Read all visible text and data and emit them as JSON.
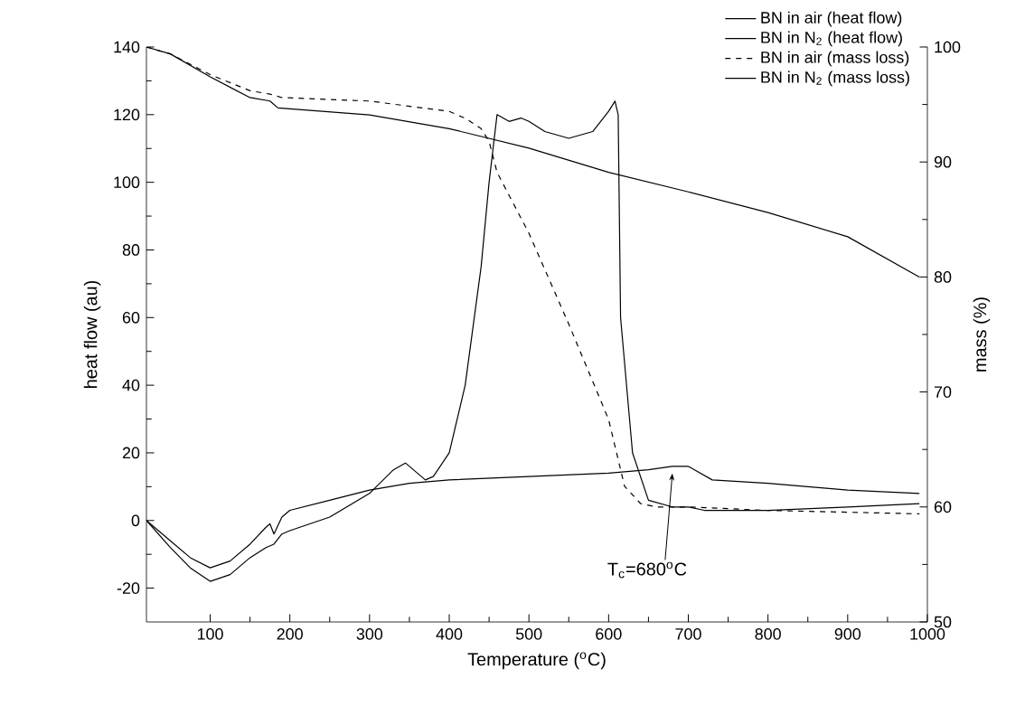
{
  "chart_data": {
    "type": "line",
    "xlabel": "Temperature ($^{o}$C)",
    "ylabel": "heat flow (au)",
    "y2label": "mass (%)",
    "xlim": [
      20,
      1000
    ],
    "xticks": [
      100,
      200,
      300,
      400,
      500,
      600,
      700,
      800,
      900,
      1000
    ],
    "ylim": [
      -30,
      140
    ],
    "yticks": [
      -20,
      0,
      20,
      40,
      60,
      80,
      100,
      120,
      140
    ],
    "y2lim": [
      50,
      100
    ],
    "y2ticks": [
      50,
      60,
      70,
      80,
      90,
      100
    ],
    "legend": "top right",
    "annotations": [
      {
        "text": "T$_{c}$=680$^{o}$C",
        "x": 680,
        "y": 15
      }
    ],
    "series": [
      {
        "name": "BN in air (heat flow)",
        "color": "#000000",
        "line_style": "solid",
        "x": [
          20,
          50,
          75,
          100,
          125,
          150,
          170,
          180,
          190,
          200,
          250,
          300,
          330,
          345,
          360,
          370,
          380,
          400,
          420,
          440,
          450,
          460,
          475,
          490,
          500,
          520,
          550,
          580,
          600,
          608,
          612,
          615,
          630,
          650,
          680,
          700,
          720,
          800,
          900,
          990
        ],
        "values": [
          0,
          -8,
          -14,
          -18,
          -16,
          -11,
          -8,
          -7,
          -4,
          -3,
          1,
          8,
          15,
          17,
          14,
          12,
          13,
          20,
          40,
          75,
          100,
          120,
          118,
          119,
          118,
          115,
          113,
          115,
          121,
          124,
          120,
          60,
          20,
          6,
          4,
          4,
          3,
          3,
          4,
          5
        ]
      },
      {
        "name": "BN in N$_{2}$ (heat flow)",
        "color": "#000000",
        "line_style": "solid",
        "x": [
          20,
          50,
          75,
          100,
          125,
          150,
          170,
          175,
          180,
          190,
          200,
          250,
          300,
          350,
          400,
          500,
          600,
          650,
          680,
          700,
          730,
          800,
          900,
          990
        ],
        "values": [
          0,
          -6,
          -11,
          -14,
          -12,
          -7,
          -2,
          -1,
          -4,
          1,
          3,
          6,
          9,
          11,
          12,
          13,
          14,
          15,
          16,
          16,
          12,
          11,
          9,
          8
        ]
      },
      {
        "name": "BN in air (mass loss)",
        "color": "#000000",
        "line_style": "dashed",
        "axis": "y2",
        "x": [
          20,
          50,
          100,
          150,
          175,
          190,
          300,
          400,
          420,
          440,
          450,
          460,
          500,
          550,
          600,
          620,
          640,
          660,
          700,
          800,
          990
        ],
        "values": [
          100,
          99.4,
          97.6,
          96.2,
          95.9,
          95.6,
          95.3,
          94.4,
          93.8,
          92.9,
          91.8,
          89.1,
          83.8,
          75.9,
          67.6,
          61.8,
          60.3,
          60,
          60,
          59.7,
          59.4
        ]
      },
      {
        "name": "BN in N$_{2}$ (mass loss)",
        "color": "#000000",
        "line_style": "solid",
        "axis": "y2",
        "x": [
          20,
          50,
          100,
          150,
          175,
          185,
          300,
          400,
          500,
          600,
          700,
          800,
          900,
          990
        ],
        "values": [
          100,
          99.4,
          97.4,
          95.6,
          95.3,
          94.7,
          94.1,
          92.9,
          91.2,
          89.1,
          87.4,
          85.6,
          83.5,
          80.0
        ]
      }
    ]
  }
}
